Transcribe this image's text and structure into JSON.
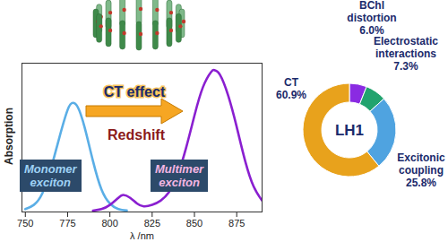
{
  "chart_data": [
    {
      "type": "line",
      "xlabel": "λ /nm",
      "ylabel": "Absorption",
      "xlim": [
        748,
        890
      ],
      "ylim": [
        0,
        1.05
      ],
      "xticks": [
        750,
        775,
        800,
        825,
        850,
        875
      ],
      "tick_labels": "x",
      "series": [
        {
          "name": "Monomer exciton",
          "color": "#5aaee6",
          "x": [
            750,
            755,
            760,
            765,
            770,
            775,
            778,
            781,
            785,
            790,
            795,
            800,
            805,
            810
          ],
          "values": [
            0.02,
            0.05,
            0.13,
            0.3,
            0.52,
            0.72,
            0.77,
            0.74,
            0.6,
            0.36,
            0.16,
            0.06,
            0.02,
            0.01
          ]
        },
        {
          "name": "Multimer exciton",
          "color": "#8a1fd0",
          "x": [
            790,
            795,
            800,
            805,
            808,
            812,
            816,
            820,
            825,
            830,
            835,
            840,
            845,
            850,
            855,
            860,
            862,
            865,
            870,
            875,
            880,
            885,
            890
          ],
          "values": [
            0.01,
            0.02,
            0.05,
            0.1,
            0.12,
            0.1,
            0.06,
            0.04,
            0.05,
            0.08,
            0.14,
            0.26,
            0.45,
            0.68,
            0.88,
            0.99,
            1.0,
            0.97,
            0.82,
            0.6,
            0.36,
            0.18,
            0.08
          ]
        }
      ],
      "annotations": [
        "CT effect",
        "Redshift"
      ]
    },
    {
      "type": "donut",
      "center_label": "LH1",
      "categories": [
        "BChl distortion",
        "Electrostatic interactions",
        "Excitonic coupling",
        "CT"
      ],
      "values": [
        6.0,
        7.3,
        25.8,
        60.9
      ],
      "value_labels": [
        "6.0%",
        "7.3%",
        "25.8%",
        "60.9%"
      ],
      "colors": [
        "#8a2be2",
        "#22a36e",
        "#4fa3e0",
        "#e8a21c"
      ]
    }
  ]
}
